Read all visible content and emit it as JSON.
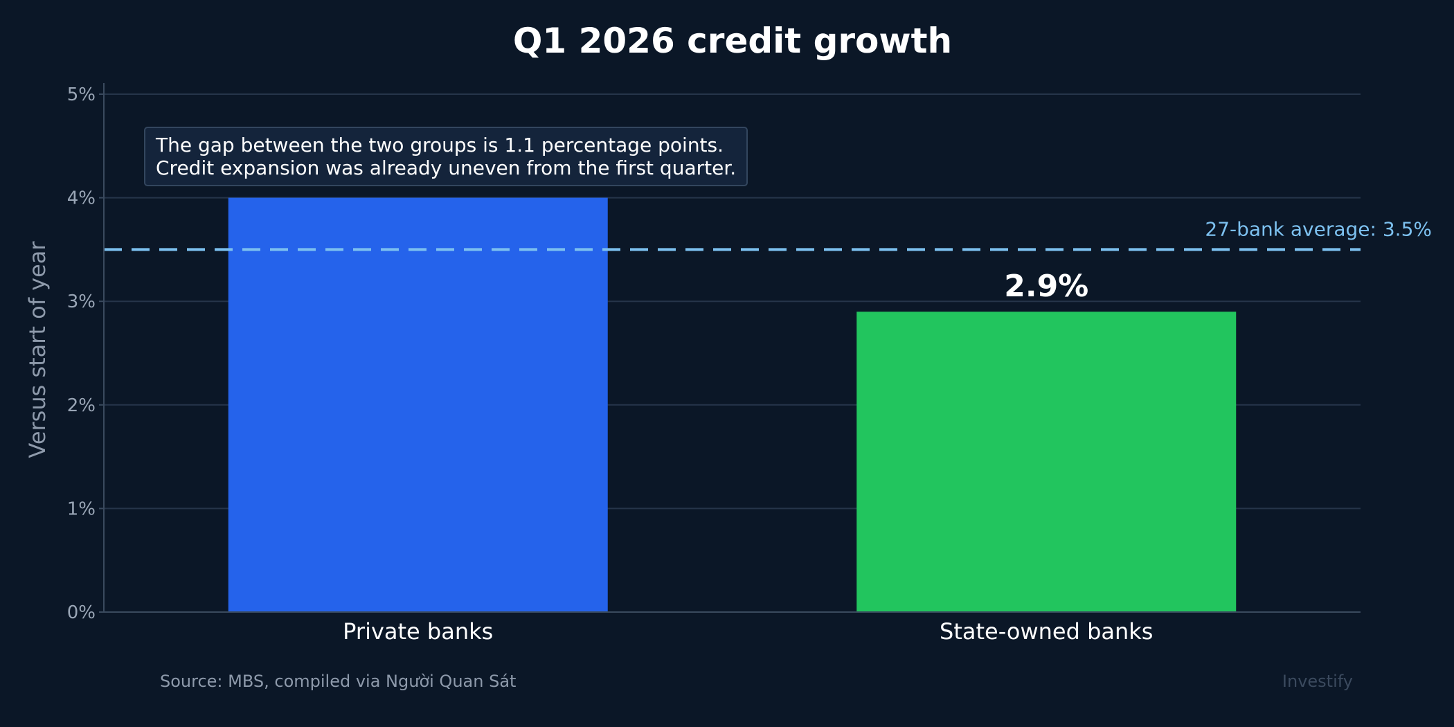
{
  "chart_data": {
    "type": "bar",
    "title": "Q1 2026 credit growth",
    "ylabel": "Versus start of year",
    "xlabel": "",
    "categories": [
      "Private banks",
      "State-owned banks"
    ],
    "values": [
      4.0,
      2.9
    ],
    "value_labels": [
      "",
      "2.9%"
    ],
    "bar_colors": [
      "#2563eb",
      "#22c55e"
    ],
    "ylim": [
      0,
      5
    ],
    "yticks": [
      0,
      1,
      2,
      3,
      4,
      5
    ],
    "ytick_labels": [
      "0%",
      "1%",
      "2%",
      "3%",
      "4%",
      "5%"
    ],
    "grid": true,
    "reference_line": {
      "value": 3.5,
      "label": "27-bank average: 3.5%",
      "color": "#7dc1f0"
    },
    "annotation": {
      "lines": [
        "The gap between the two groups is 1.1 percentage points.",
        "Credit expansion was already uneven from the first quarter."
      ]
    },
    "source": "Source: MBS, compiled via Người Quan Sát",
    "watermark": "Investify"
  },
  "colors": {
    "background": "#0b1727",
    "grid": "#26354a",
    "axis": "#3a4a5e",
    "tick_text": "#9aa6b6",
    "text": "#ffffff"
  }
}
